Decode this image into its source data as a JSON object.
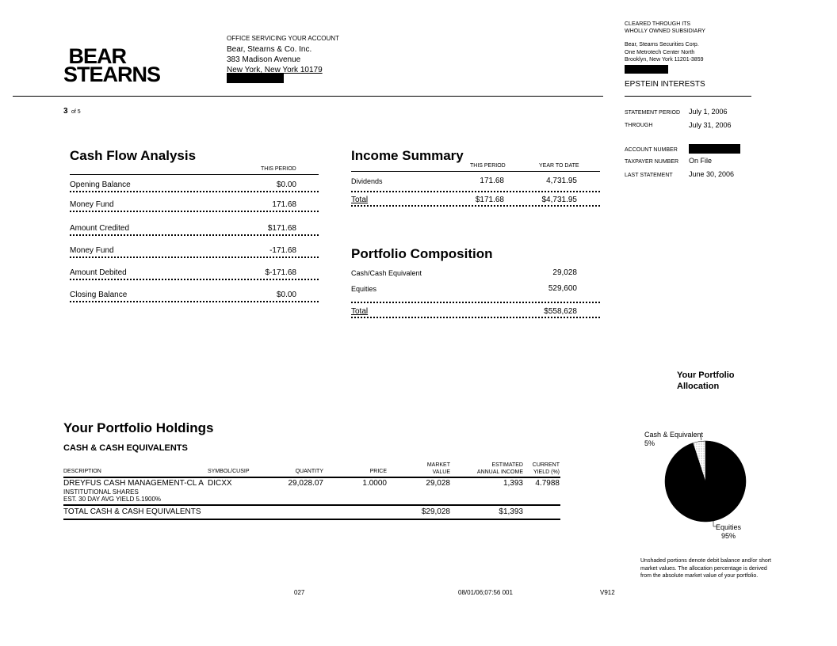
{
  "header": {
    "logo": "BEAR STEARNS",
    "office_label": "OFFICE SERVICING YOUR ACCOUNT",
    "office_lines": [
      "Bear, Stearns & Co. Inc.",
      "383 Madison Avenue",
      "New York, New York  10179"
    ],
    "cleared_lines": [
      "CLEARED  THROUGH  ITS",
      "WHOLLY  OWNED  SUBSIDIARY"
    ],
    "subsidiary_lines": [
      "Bear, Steams Securities Corp.",
      "One Metrotech  Center North",
      "Brooklyn,  New York  11201-3859"
    ],
    "account_name": "EPSTEIN INTERESTS",
    "page_num": "3",
    "page_of": "of 5"
  },
  "statement": {
    "period_label": "STATEMENT  PERIOD",
    "period_value": "July 1, 2006",
    "through_label": "THROUGH",
    "through_value": "July 31, 2006",
    "account_label": "ACCOUNT  NUMBER",
    "taxpayer_label": "TAXPAYER  NUMBER",
    "taxpayer_value": "On File",
    "last_label": "LAST STATEMENT",
    "last_value": "June 30, 2006"
  },
  "cash_flow": {
    "title": "Cash Flow Analysis",
    "col": "THIS PERIOD",
    "rows": [
      {
        "label": "Opening Balance",
        "value": "$0.00"
      },
      {
        "label": "Money Fund",
        "value": "171.68"
      },
      {
        "label": "Amount Credited",
        "value": "$171.68"
      },
      {
        "label": "Money Fund",
        "value": "-171.68"
      },
      {
        "label": "Amount Debited",
        "value": "$-171.68"
      },
      {
        "label": "Closing Balance",
        "value": "$0.00"
      }
    ]
  },
  "income": {
    "title": "Income Summary",
    "col1": "THIS PERIOD",
    "col2": "YEAR TO DATE",
    "rows": [
      {
        "label": "Dividends",
        "v1": "171.68",
        "v2": "4,731.95"
      },
      {
        "label": "Total",
        "v1": "$171.68",
        "v2": "$4,731.95"
      }
    ]
  },
  "portfolio": {
    "title": "Portfolio Composition",
    "rows": [
      {
        "label": "Cash/Cash Equivalent",
        "value": "29,028"
      },
      {
        "label": "Equities",
        "value": "529,600"
      },
      {
        "label": "Total",
        "value": "$558,628"
      }
    ]
  },
  "holdings": {
    "title": "Your Portfolio Holdings",
    "section": "CASH & CASH EQUIVALENTS",
    "columns": [
      "DESCRIPTION",
      "SYMBOL/CUSIP",
      "QUANTITY",
      "PRICE",
      "MARKET",
      "VALUE",
      "ESTIMATED",
      "ANNUAL INCOME",
      "CURRENT",
      "YIELD (%)"
    ],
    "row": {
      "desc": "DREYFUS CASH MANAGEMENT-CL A",
      "desc2": "INSTITUTIONAL SHARES",
      "desc3": "EST. 30 DAY AVG YIELD  5.1900%",
      "symbol": "DICXX",
      "quantity": "29,028.07",
      "price": "1.0000",
      "value": "29,028",
      "income": "1,393",
      "yield": "4.7988"
    },
    "total": {
      "label": "TOTAL CASH & CASH EQUIVALENTS",
      "value": "$29,028",
      "income": "$1,393"
    }
  },
  "allocation": {
    "title1": "Your Portfolio",
    "title2": "Allocation",
    "note": [
      "Unshaded portions  denote  debit balance  and/or  short",
      "market  values.   The allocation percentage  is derived",
      "from  the absolute  market  value of your portfolio."
    ]
  },
  "chart_data": {
    "type": "pie",
    "slices": [
      {
        "name": "Cash & Equivalent",
        "label": "5%",
        "value": 5,
        "color": "#ffffff"
      },
      {
        "name": "Equities",
        "label": "95%",
        "value": 95,
        "color": "#000000"
      }
    ]
  },
  "footer": {
    "code1": "027",
    "timestamp": "08/01/06;07:56  001",
    "code2": "V912"
  }
}
